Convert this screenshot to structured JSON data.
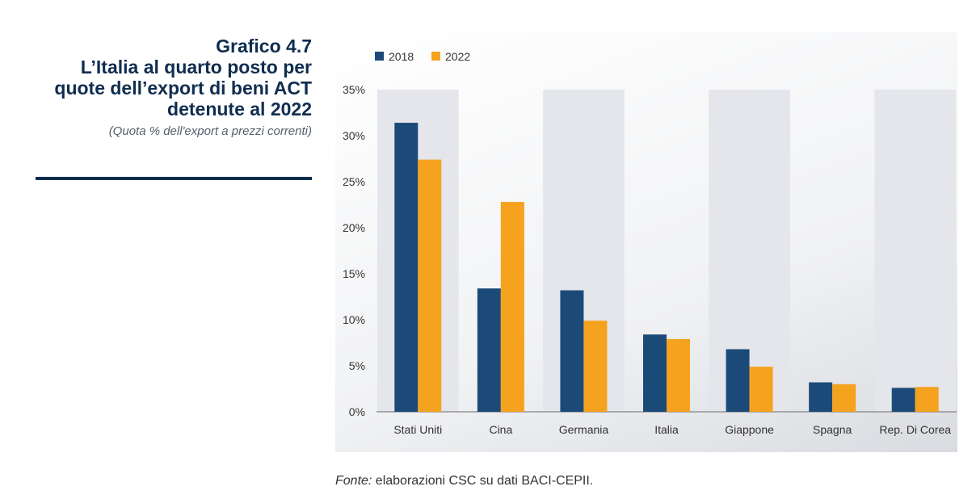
{
  "header": {
    "title_line1": "Grafico 4.7",
    "title_line2": "L’Italia al quarto posto per quote dell’export di beni ACT detenute al 2022",
    "subtitle": "(Quota % dell'export a prezzi correnti)"
  },
  "footer": {
    "source_label": "Fonte:",
    "source_text": " elaborazioni CSC su dati BACI-CEPII."
  },
  "colors": {
    "series_2018": "#1b4a78",
    "series_2022": "#f5a21f",
    "band": "#e4e6eb",
    "title": "#0f2d4f"
  },
  "chart_data": {
    "type": "bar",
    "categories": [
      "Stati Uniti",
      "Cina",
      "Germania",
      "Italia",
      "Giappone",
      "Spagna",
      "Rep. Di Corea"
    ],
    "series": [
      {
        "name": "2018",
        "values": [
          31.4,
          13.4,
          13.2,
          8.4,
          6.8,
          3.2,
          2.6
        ]
      },
      {
        "name": "2022",
        "values": [
          27.4,
          22.8,
          9.9,
          7.9,
          4.9,
          3.0,
          2.7
        ]
      }
    ],
    "yticks": [
      "0%",
      "5%",
      "10%",
      "15%",
      "20%",
      "25%",
      "30%",
      "35%"
    ],
    "ylim": [
      0,
      35
    ],
    "legend_position": "top-left",
    "alternating_bands": true
  }
}
